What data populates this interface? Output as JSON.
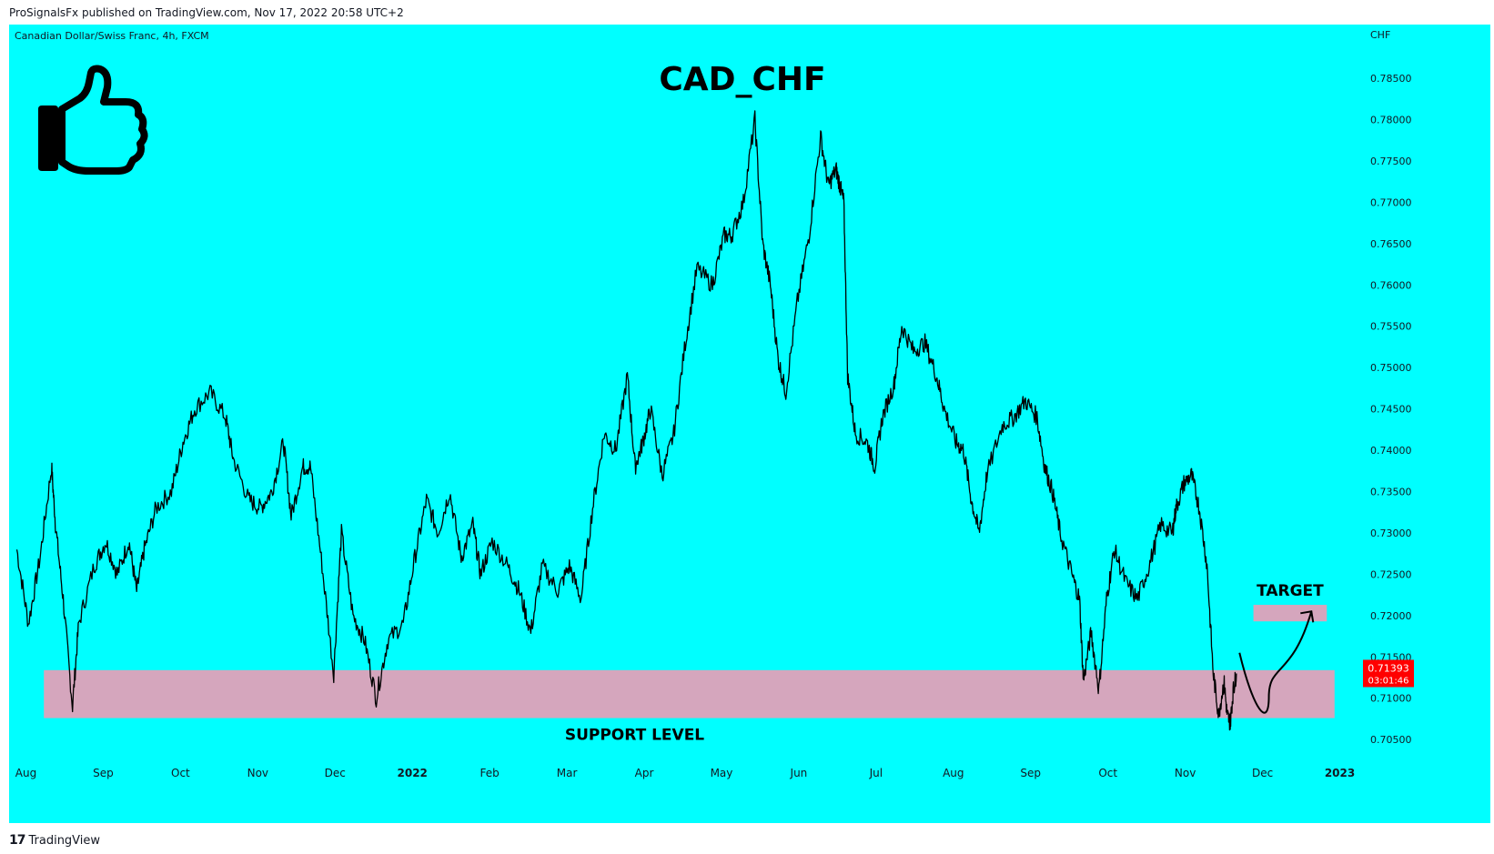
{
  "header": {
    "published_text": "ProSignalsFx published on TradingView.com, Nov 17, 2022 20:58 UTC+2"
  },
  "footer": {
    "logo_glyph": "17",
    "brand": "TradingView"
  },
  "chart_data": {
    "type": "line",
    "symbol_info": "Canadian Dollar/Swiss Franc, 4h, FXCM",
    "currency": "CHF",
    "title": "CAD_CHF",
    "price_ticks": [
      "0.78500",
      "0.78000",
      "0.77500",
      "0.77000",
      "0.76500",
      "0.76000",
      "0.75500",
      "0.75000",
      "0.74500",
      "0.74000",
      "0.73500",
      "0.73000",
      "0.72500",
      "0.72000",
      "0.71500",
      "0.71000",
      "0.70500"
    ],
    "price_tick_values": [
      0.785,
      0.78,
      0.775,
      0.77,
      0.765,
      0.76,
      0.755,
      0.75,
      0.745,
      0.74,
      0.735,
      0.73,
      0.725,
      0.72,
      0.715,
      0.71,
      0.705
    ],
    "x_ticks": [
      {
        "label": "Aug",
        "t": 0.0,
        "bold": false
      },
      {
        "label": "Sep",
        "t": 1.0,
        "bold": false
      },
      {
        "label": "Oct",
        "t": 2.0,
        "bold": false
      },
      {
        "label": "Nov",
        "t": 3.0,
        "bold": false
      },
      {
        "label": "Dec",
        "t": 4.0,
        "bold": false
      },
      {
        "label": "2022",
        "t": 5.0,
        "bold": true
      },
      {
        "label": "Feb",
        "t": 6.0,
        "bold": false
      },
      {
        "label": "Mar",
        "t": 7.0,
        "bold": false
      },
      {
        "label": "Apr",
        "t": 8.0,
        "bold": false
      },
      {
        "label": "May",
        "t": 9.0,
        "bold": false
      },
      {
        "label": "Jun",
        "t": 10.0,
        "bold": false
      },
      {
        "label": "Jul",
        "t": 11.0,
        "bold": false
      },
      {
        "label": "Aug",
        "t": 12.0,
        "bold": false
      },
      {
        "label": "Sep",
        "t": 13.0,
        "bold": false
      },
      {
        "label": "Oct",
        "t": 14.0,
        "bold": false
      },
      {
        "label": "Nov",
        "t": 15.0,
        "bold": false
      },
      {
        "label": "Dec",
        "t": 16.0,
        "bold": false
      },
      {
        "label": "2023",
        "t": 17.0,
        "bold": true
      }
    ],
    "series": [
      {
        "points": [
          [
            0.0,
            0.728
          ],
          [
            0.15,
            0.719
          ],
          [
            0.3,
            0.727
          ],
          [
            0.45,
            0.738
          ],
          [
            0.5,
            0.731
          ],
          [
            0.6,
            0.722
          ],
          [
            0.72,
            0.709
          ],
          [
            0.8,
            0.719
          ],
          [
            1.0,
            0.726
          ],
          [
            1.15,
            0.729
          ],
          [
            1.3,
            0.725
          ],
          [
            1.45,
            0.729
          ],
          [
            1.55,
            0.723
          ],
          [
            1.65,
            0.728
          ],
          [
            1.8,
            0.733
          ],
          [
            2.0,
            0.735
          ],
          [
            2.15,
            0.741
          ],
          [
            2.3,
            0.745
          ],
          [
            2.5,
            0.747
          ],
          [
            2.7,
            0.744
          ],
          [
            2.8,
            0.739
          ],
          [
            3.0,
            0.734
          ],
          [
            3.15,
            0.733
          ],
          [
            3.3,
            0.735
          ],
          [
            3.45,
            0.741
          ],
          [
            3.55,
            0.732
          ],
          [
            3.7,
            0.738
          ],
          [
            3.8,
            0.738
          ],
          [
            3.95,
            0.726
          ],
          [
            4.1,
            0.713
          ],
          [
            4.2,
            0.73
          ],
          [
            4.35,
            0.72
          ],
          [
            4.5,
            0.717
          ],
          [
            4.65,
            0.71
          ],
          [
            4.8,
            0.717
          ],
          [
            5.0,
            0.719
          ],
          [
            5.15,
            0.727
          ],
          [
            5.3,
            0.734
          ],
          [
            5.45,
            0.73
          ],
          [
            5.6,
            0.735
          ],
          [
            5.75,
            0.727
          ],
          [
            5.9,
            0.731
          ],
          [
            6.0,
            0.725
          ],
          [
            6.15,
            0.729
          ],
          [
            6.35,
            0.726
          ],
          [
            6.5,
            0.723
          ],
          [
            6.65,
            0.718
          ],
          [
            6.8,
            0.726
          ],
          [
            7.0,
            0.723
          ],
          [
            7.15,
            0.726
          ],
          [
            7.3,
            0.722
          ],
          [
            7.45,
            0.733
          ],
          [
            7.6,
            0.742
          ],
          [
            7.75,
            0.74
          ],
          [
            7.9,
            0.749
          ],
          [
            8.0,
            0.738
          ],
          [
            8.1,
            0.741
          ],
          [
            8.2,
            0.745
          ],
          [
            8.35,
            0.737
          ],
          [
            8.5,
            0.742
          ],
          [
            8.65,
            0.753
          ],
          [
            8.8,
            0.762
          ],
          [
            9.0,
            0.76
          ],
          [
            9.15,
            0.766
          ],
          [
            9.25,
            0.766
          ],
          [
            9.4,
            0.77
          ],
          [
            9.55,
            0.78
          ],
          [
            9.65,
            0.765
          ],
          [
            9.75,
            0.76
          ],
          [
            9.85,
            0.751
          ],
          [
            9.95,
            0.747
          ],
          [
            10.1,
            0.758
          ],
          [
            10.25,
            0.766
          ],
          [
            10.4,
            0.778
          ],
          [
            10.5,
            0.772
          ],
          [
            10.6,
            0.774
          ],
          [
            10.65,
            0.772
          ],
          [
            10.7,
            0.77
          ],
          [
            10.75,
            0.749
          ],
          [
            10.85,
            0.742
          ],
          [
            11.0,
            0.741
          ],
          [
            11.1,
            0.738
          ],
          [
            11.2,
            0.744
          ],
          [
            11.35,
            0.748
          ],
          [
            11.45,
            0.755
          ],
          [
            11.6,
            0.752
          ],
          [
            11.75,
            0.753
          ],
          [
            11.9,
            0.749
          ],
          [
            12.0,
            0.745
          ],
          [
            12.15,
            0.741
          ],
          [
            12.25,
            0.74
          ],
          [
            12.35,
            0.734
          ],
          [
            12.45,
            0.73
          ],
          [
            12.55,
            0.737
          ],
          [
            12.75,
            0.743
          ],
          [
            12.9,
            0.744
          ],
          [
            13.05,
            0.746
          ],
          [
            13.2,
            0.744
          ],
          [
            13.3,
            0.738
          ],
          [
            13.4,
            0.735
          ],
          [
            13.5,
            0.73
          ],
          [
            13.65,
            0.725
          ],
          [
            13.75,
            0.722
          ],
          [
            13.8,
            0.712
          ],
          [
            13.9,
            0.718
          ],
          [
            14.0,
            0.711
          ],
          [
            14.1,
            0.722
          ],
          [
            14.2,
            0.728
          ],
          [
            14.35,
            0.724
          ],
          [
            14.5,
            0.722
          ],
          [
            14.65,
            0.726
          ],
          [
            14.8,
            0.731
          ],
          [
            14.95,
            0.73
          ],
          [
            15.0,
            0.733
          ],
          [
            15.1,
            0.736
          ],
          [
            15.2,
            0.737
          ],
          [
            15.3,
            0.733
          ],
          [
            15.4,
            0.726
          ],
          [
            15.48,
            0.713
          ],
          [
            15.55,
            0.708
          ],
          [
            15.62,
            0.712
          ],
          [
            15.66,
            0.708
          ],
          [
            15.7,
            0.707
          ],
          [
            15.74,
            0.711
          ],
          [
            15.78,
            0.713
          ]
        ]
      }
    ],
    "y_range": [
      0.7015,
      0.7915
    ],
    "x_range": [
      -0.1,
      17.3
    ],
    "support_zone": {
      "label": "SUPPORT LEVEL",
      "from": 0.7076,
      "to": 0.7134,
      "t_start": 0.35,
      "t_end": 17.05
    },
    "target_zone": {
      "label": "TARGET",
      "from": 0.7193,
      "to": 0.7213,
      "t_start": 16.0,
      "t_end": 16.95
    },
    "projection_path": [
      [
        15.82,
        0.7155
      ],
      [
        16.0,
        0.7115
      ],
      [
        16.2,
        0.7102
      ],
      [
        16.5,
        0.7135
      ],
      [
        16.75,
        0.7205
      ]
    ],
    "current_price": {
      "label": "0.71393",
      "countdown": "03:01:46",
      "color": "#ff0000"
    },
    "colors": {
      "background": "#00ffff",
      "zone_fill": "#d5a6bd",
      "line": "#000000",
      "text": "#131722"
    }
  }
}
